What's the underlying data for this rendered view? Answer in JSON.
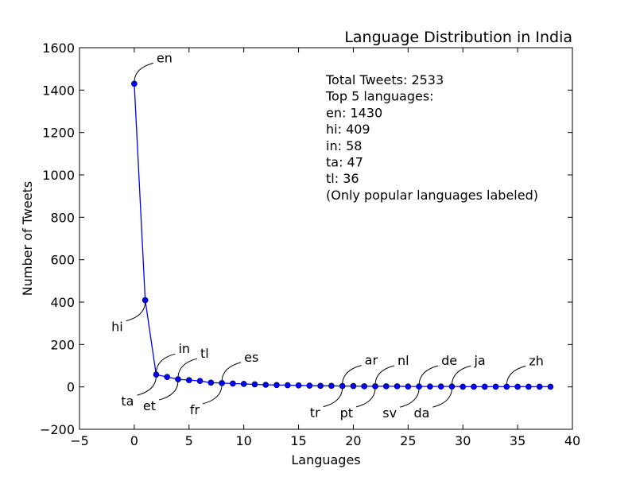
{
  "chart_data": {
    "type": "line",
    "title": "Language Distribution in India",
    "xlabel": "Languages",
    "ylabel": "Number of Tweets",
    "xlim": [
      -5,
      40
    ],
    "ylim": [
      -200,
      1600
    ],
    "xticks": [
      "-5",
      "0",
      "5",
      "10",
      "15",
      "20",
      "25",
      "30",
      "35",
      "40"
    ],
    "yticks": [
      "-200",
      "0",
      "200",
      "400",
      "600",
      "800",
      "1000",
      "1200",
      "1400",
      "1600"
    ],
    "grid": false,
    "line_color": "#0000ff",
    "marker_color": "#0000ff",
    "x": [
      0,
      1,
      2,
      3,
      4,
      5,
      6,
      7,
      8,
      9,
      10,
      11,
      12,
      13,
      14,
      15,
      16,
      17,
      18,
      19,
      20,
      21,
      22,
      23,
      24,
      25,
      26,
      27,
      28,
      29,
      30,
      31,
      32,
      33,
      34,
      35,
      36,
      37,
      38
    ],
    "values": [
      1430,
      409,
      58,
      47,
      36,
      32,
      28,
      20,
      18,
      16,
      14,
      12,
      10,
      9,
      8,
      7,
      6,
      5,
      5,
      4,
      4,
      3,
      3,
      3,
      3,
      2,
      2,
      2,
      2,
      2,
      1,
      1,
      1,
      1,
      1,
      1,
      1,
      1,
      1
    ],
    "labels": [
      {
        "index": 0,
        "text": "en",
        "side": "above"
      },
      {
        "index": 1,
        "text": "hi",
        "side": "below"
      },
      {
        "index": 2,
        "text": "in",
        "side": "above"
      },
      {
        "index": 2,
        "text": "ta",
        "side": "below"
      },
      {
        "index": 4,
        "text": "tl",
        "side": "above"
      },
      {
        "index": 4,
        "text": "et",
        "side": "below"
      },
      {
        "index": 8,
        "text": "es",
        "side": "above"
      },
      {
        "index": 8,
        "text": "fr",
        "side": "below"
      },
      {
        "index": 19,
        "text": "ar",
        "side": "above"
      },
      {
        "index": 19,
        "text": "tr",
        "side": "below"
      },
      {
        "index": 22,
        "text": "nl",
        "side": "above"
      },
      {
        "index": 22,
        "text": "pt",
        "side": "below"
      },
      {
        "index": 26,
        "text": "de",
        "side": "above"
      },
      {
        "index": 26,
        "text": "sv",
        "side": "below"
      },
      {
        "index": 29,
        "text": "ja",
        "side": "above"
      },
      {
        "index": 29,
        "text": "da",
        "side": "below"
      },
      {
        "index": 34,
        "text": "zh",
        "side": "above"
      }
    ],
    "annotation": [
      "Total Tweets: 2533",
      "Top 5 languages:",
      "en: 1430",
      "hi: 409",
      "in: 58",
      "ta: 47",
      "tl: 36",
      "(Only popular languages labeled)"
    ]
  }
}
